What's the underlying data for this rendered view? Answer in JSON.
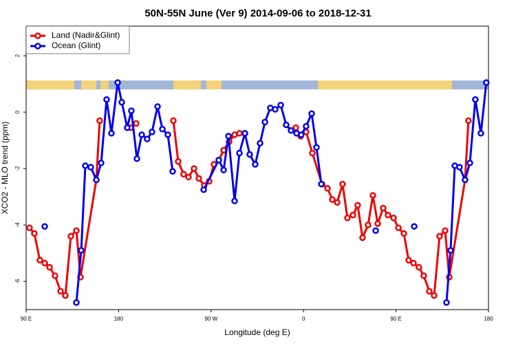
{
  "chart_data": {
    "type": "line",
    "title": "50N-55N June (Ver 9)   2014-09-06 to 2018-12-31",
    "x_label": "Longitude (deg E)",
    "y_label": "XCO2 - MLO trend (ppm)",
    "xlim": [
      90,
      540
    ],
    "ylim": [
      -7,
      3.05
    ],
    "xticks": [
      {
        "value": 90,
        "label": "90 E"
      },
      {
        "value": 180,
        "label": "180"
      },
      {
        "value": 270,
        "label": "90 W"
      },
      {
        "value": 360,
        "label": "0"
      },
      {
        "value": 450,
        "label": "90 E"
      },
      {
        "value": 540,
        "label": "180"
      }
    ],
    "yticks": [
      2,
      0,
      -2,
      -4,
      -6
    ],
    "legend": "top-left",
    "series": [
      {
        "name": "Land (Nadir&Glint)",
        "color": "#ee0000",
        "x": [
          93.3,
          98.0,
          103.4,
          108.1,
          112.8,
          118.1,
          123.5,
          128.2,
          133.5,
          138.9,
          142.9,
          158.3,
          161.6,
          null,
          191.8,
          197.1,
          null,
          233.3,
          238.0,
          243.3,
          248.0,
          253.4,
          258.1,
          263.4,
          268.1,
          272.8,
          277.5,
          282.2,
          287.5,
          292.9,
          297.6,
          302.9,
          null,
          352.5,
          357.2,
          362.5,
          368.6,
          377.9,
          383.3,
          388.0,
          392.7,
          398.0,
          402.7,
          408.1,
          412.7,
          417.4,
          422.8,
          427.5,
          432.2,
          437.5,
          442.2,
          447.6,
          452.3,
          457.6,
          462.3,
          467.0,
          472.3,
          477.0,
          482.4,
          487.1,
          492.4,
          497.8,
          501.8,
          517.2,
          520.5
        ],
        "values": [
          -4.1,
          -4.3,
          -5.25,
          -5.35,
          -5.5,
          -5.8,
          -6.35,
          -6.5,
          -4.4,
          -4.2,
          -5.85,
          -2.4,
          -0.3,
          null,
          -0.55,
          -0.4,
          null,
          -0.3,
          -1.75,
          -2.2,
          -2.3,
          -2.0,
          -2.35,
          -2.6,
          -2.45,
          -1.85,
          -1.7,
          -1.35,
          -1.05,
          -0.8,
          -0.75,
          -0.75,
          null,
          -0.55,
          -0.85,
          -0.7,
          -1.45,
          -2.55,
          -2.7,
          -3.1,
          -3.2,
          -2.55,
          -3.75,
          -3.65,
          -3.3,
          -4.45,
          -4.0,
          -2.95,
          -3.95,
          -3.4,
          -3.65,
          -3.75,
          -4.1,
          -4.3,
          -5.25,
          -5.35,
          -5.5,
          -5.8,
          -6.35,
          -6.5,
          -4.4,
          -4.2,
          -5.85,
          -2.4,
          -0.3
        ]
      },
      {
        "name": "Ocean (Glint)",
        "color": "#0000ee",
        "x": [
          108.1,
          null,
          138.9,
          143.6,
          147.6,
          152.9,
          158.3,
          163.0,
          168.3,
          173.0,
          179.1,
          183.1,
          188.4,
          192.4,
          197.8,
          202.5,
          207.8,
          212.5,
          217.9,
          222.6,
          227.9,
          232.6,
          null,
          262.8,
          277.5,
          282.2,
          286.9,
          292.9,
          297.6,
          302.9,
          307.6,
          313.0,
          317.7,
          322.4,
          327.7,
          332.4,
          337.8,
          343.1,
          347.8,
          353.2,
          357.8,
          362.5,
          367.9,
          372.6,
          377.3,
          null,
          430.2,
          null,
          467.7,
          null,
          499.1,
          503.1,
          507.2,
          511.8,
          517.2,
          521.9,
          527.2,
          532.6,
          537.9
        ],
        "values": [
          -4.05,
          null,
          -6.75,
          -4.9,
          -1.9,
          -1.95,
          -2.4,
          -1.8,
          0.45,
          -0.75,
          1.05,
          0.35,
          -0.55,
          0.05,
          -1.65,
          -0.8,
          -0.95,
          -0.7,
          0.2,
          -0.6,
          -0.8,
          -2.1,
          null,
          -2.75,
          -1.7,
          -2.05,
          -0.85,
          -3.15,
          -1.45,
          -0.75,
          -1.5,
          -1.85,
          -1.1,
          -0.35,
          0.15,
          0.1,
          0.25,
          -0.45,
          -0.65,
          -0.75,
          -0.8,
          -0.5,
          -0.05,
          -1.25,
          -2.55,
          null,
          -4.2,
          null,
          -4.05,
          null,
          -6.75,
          -4.9,
          -1.9,
          -1.95,
          -2.4,
          -1.8,
          0.45,
          -0.75,
          1.05
        ]
      }
    ]
  }
}
